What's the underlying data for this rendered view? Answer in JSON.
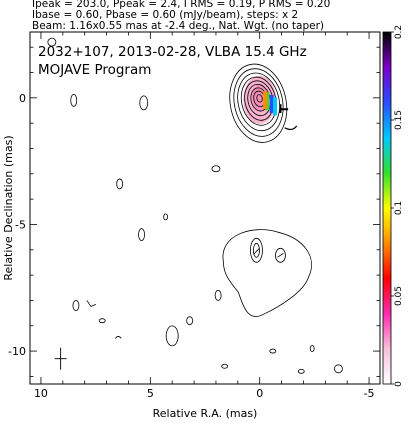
{
  "header": {
    "line1": "Ipeak = 203.0, Ppeak = 2.4, I RMS = 0.19, P RMS = 0.20",
    "line2": "Ibase = 0.60, Pbase = 0.60 (mJy/beam), steps: x 2",
    "line3": "Beam: 1.16x0.55 mas at -2.4 deg., Nat. Wgt. (no taper)"
  },
  "chart_data": {
    "type": "heatmap",
    "title": "2032+107, 2013-02-28, VLBA 15.4 GHz",
    "subtitle": "MOJAVE Program",
    "xlabel": "Relative R.A. (mas)",
    "ylabel": "Relative Declination (mas)",
    "xlim": [
      10.5,
      -5.5
    ],
    "ylim": [
      -11.3,
      2.6
    ],
    "x_ticks": [
      10,
      5,
      0,
      -5
    ],
    "y_ticks": [
      0,
      -5,
      -10
    ],
    "colorbar": {
      "range": [
        0,
        0.2
      ],
      "ticks": [
        0,
        0.05,
        0.1,
        0.15,
        0.2
      ],
      "colors": [
        "#ffffff",
        "#f8c0dc",
        "#ff2bb0",
        "#ff0000",
        "#ff8c00",
        "#ffff00",
        "#30e030",
        "#00c8ff",
        "#2a4dff",
        "#7d00c8",
        "#000000"
      ]
    },
    "core": {
      "x": 0,
      "y": 0,
      "contour_radii": [
        0.12,
        0.25,
        0.37,
        0.5,
        0.63,
        0.77,
        0.92,
        1.08,
        1.25
      ]
    },
    "jet": {
      "x": -0.4,
      "y": -6.1,
      "rx": 2.8,
      "ry": 2.5
    },
    "polarization_bars": [
      {
        "x": -0.35,
        "y": -0.1,
        "color": "#30e030"
      },
      {
        "x": -0.55,
        "y": -0.2,
        "color": "#2a4dff"
      },
      {
        "x": -0.7,
        "y": -0.3,
        "color": "#00c8ff"
      },
      {
        "x": -0.25,
        "y": -0.05,
        "color": "#ff8c00"
      }
    ]
  }
}
